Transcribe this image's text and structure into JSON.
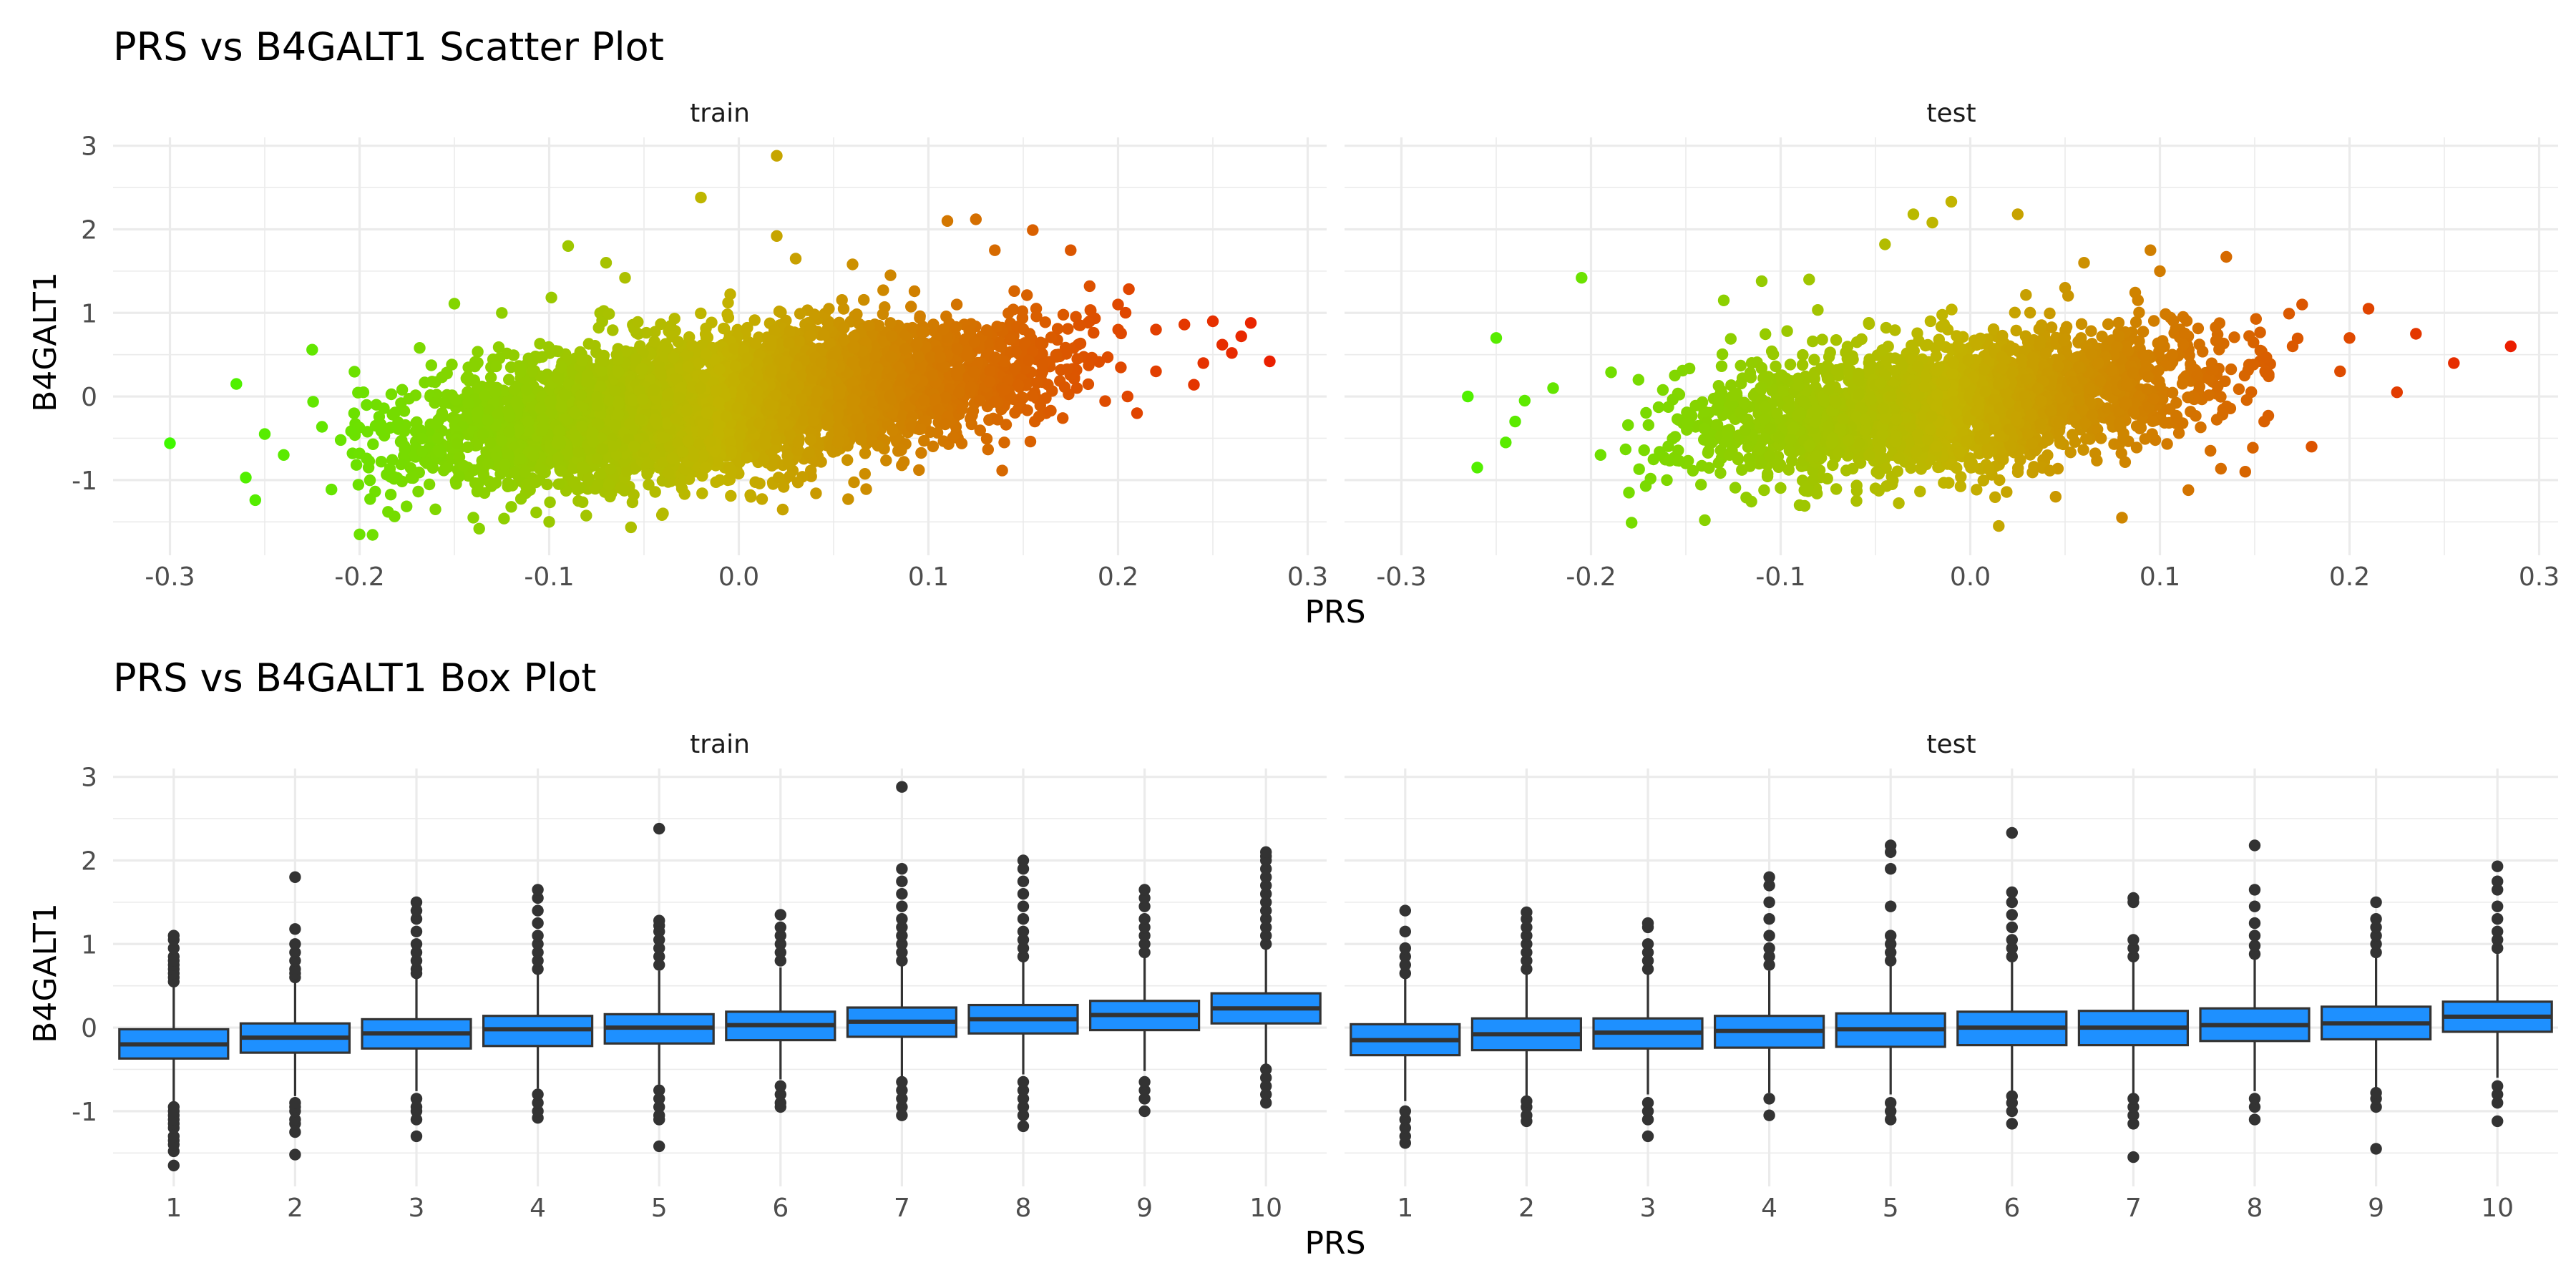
{
  "chart_data": [
    {
      "type": "scatter",
      "title": "PRS vs B4GALT1 Scatter Plot",
      "xlabel": "PRS",
      "ylabel": "B4GALT1",
      "xlim": [
        -0.33,
        0.31
      ],
      "ylim": [
        -1.9,
        3.1
      ],
      "x_ticks": [
        -0.3,
        -0.2,
        -0.1,
        0.0,
        0.1,
        0.2,
        0.3
      ],
      "x_tick_labels": [
        "-0.3",
        "-0.2",
        "-0.1",
        "0.0",
        "0.1",
        "0.2",
        "0.3"
      ],
      "y_ticks": [
        -1,
        0,
        1,
        2,
        3
      ],
      "y_tick_labels": [
        "-1",
        "0",
        "1",
        "2",
        "3"
      ],
      "grid": true,
      "color_scale": {
        "low": "#33ff00",
        "mid": "#c2b400",
        "high": "#ee1100",
        "mapped_to": "PRS"
      },
      "panels": [
        {
          "name": "train",
          "bulk": {
            "x_min": -0.24,
            "x_max": 0.23,
            "slope": 2.7,
            "intercept": -0.04,
            "sd": 0.38,
            "count": 5200
          },
          "points": [
            [
              -0.3,
              -0.56
            ],
            [
              -0.265,
              0.15
            ],
            [
              -0.26,
              -0.97
            ],
            [
              -0.255,
              -1.24
            ],
            [
              -0.25,
              -0.45
            ],
            [
              -0.24,
              -0.7
            ],
            [
              -0.225,
              0.56
            ],
            [
              -0.2,
              -1.65
            ],
            [
              -0.185,
              -1.38
            ],
            [
              -0.15,
              1.11
            ],
            [
              -0.14,
              -1.45
            ],
            [
              -0.125,
              1.0
            ],
            [
              -0.12,
              -1.32
            ],
            [
              -0.1,
              -1.5
            ],
            [
              -0.095,
              -1.05
            ],
            [
              -0.09,
              1.8
            ],
            [
              -0.07,
              1.6
            ],
            [
              -0.06,
              1.42
            ],
            [
              -0.04,
              -1.4
            ],
            [
              -0.02,
              2.38
            ],
            [
              -0.01,
              -1.0
            ],
            [
              0.02,
              1.92
            ],
            [
              0.03,
              1.65
            ],
            [
              0.06,
              1.58
            ],
            [
              0.08,
              1.45
            ],
            [
              0.095,
              -0.88
            ],
            [
              0.11,
              2.1
            ],
            [
              0.125,
              2.12
            ],
            [
              0.135,
              1.75
            ],
            [
              0.155,
              1.99
            ],
            [
              0.175,
              1.75
            ],
            [
              0.185,
              1.32
            ],
            [
              0.2,
              1.1
            ],
            [
              0.22,
              0.8
            ],
            [
              0.235,
              0.86
            ],
            [
              0.245,
              0.4
            ],
            [
              0.25,
              0.9
            ],
            [
              0.255,
              0.62
            ],
            [
              0.26,
              0.52
            ],
            [
              0.265,
              0.72
            ],
            [
              0.27,
              0.88
            ],
            [
              0.28,
              0.42
            ],
            [
              0.24,
              0.14
            ],
            [
              0.22,
              0.3
            ],
            [
              0.21,
              -0.2
            ],
            [
              0.205,
              0.0
            ],
            [
              0.02,
              2.88
            ],
            [
              -0.16,
              -1.35
            ],
            [
              -0.03,
              -1.1
            ],
            [
              0.14,
              -0.55
            ]
          ]
        },
        {
          "name": "test",
          "bulk": {
            "x_min": -0.21,
            "x_max": 0.19,
            "slope": 2.5,
            "intercept": -0.05,
            "sd": 0.38,
            "count": 2600
          },
          "points": [
            [
              -0.265,
              0.0
            ],
            [
              -0.26,
              -0.85
            ],
            [
              -0.25,
              0.7
            ],
            [
              -0.245,
              -0.55
            ],
            [
              -0.24,
              -0.3
            ],
            [
              -0.235,
              -0.05
            ],
            [
              -0.22,
              0.1
            ],
            [
              -0.205,
              1.42
            ],
            [
              -0.18,
              -1.15
            ],
            [
              -0.175,
              0.2
            ],
            [
              -0.16,
              -1.0
            ],
            [
              -0.14,
              -1.48
            ],
            [
              -0.11,
              1.38
            ],
            [
              -0.09,
              -1.3
            ],
            [
              -0.085,
              1.4
            ],
            [
              -0.06,
              -1.25
            ],
            [
              -0.045,
              1.82
            ],
            [
              -0.03,
              2.18
            ],
            [
              -0.02,
              2.08
            ],
            [
              -0.01,
              2.33
            ],
            [
              0.025,
              2.18
            ],
            [
              0.015,
              -1.55
            ],
            [
              0.045,
              -1.2
            ],
            [
              0.06,
              1.6
            ],
            [
              0.08,
              -1.45
            ],
            [
              0.095,
              1.75
            ],
            [
              0.1,
              1.5
            ],
            [
              0.115,
              -1.12
            ],
            [
              0.135,
              1.67
            ],
            [
              0.145,
              -0.9
            ],
            [
              0.17,
              0.6
            ],
            [
              0.18,
              -0.6
            ],
            [
              0.195,
              0.3
            ],
            [
              0.2,
              0.7
            ],
            [
              0.21,
              1.05
            ],
            [
              0.225,
              0.05
            ],
            [
              0.235,
              0.75
            ],
            [
              0.255,
              0.4
            ],
            [
              0.285,
              0.6
            ],
            [
              0.175,
              1.1
            ],
            [
              0.155,
              -0.3
            ],
            [
              -0.195,
              -0.7
            ],
            [
              -0.13,
              1.15
            ],
            [
              0.05,
              1.3
            ],
            [
              -0.05,
              -1.1
            ]
          ]
        }
      ]
    },
    {
      "type": "box",
      "title": "PRS vs B4GALT1 Box Plot",
      "xlabel": "PRS",
      "ylabel": "B4GALT1",
      "ylim": [
        -1.9,
        3.1
      ],
      "y_ticks": [
        -1,
        0,
        1,
        2,
        3
      ],
      "y_tick_labels": [
        "-1",
        "0",
        "1",
        "2",
        "3"
      ],
      "categories": [
        "1",
        "2",
        "3",
        "4",
        "5",
        "6",
        "7",
        "8",
        "9",
        "10"
      ],
      "grid": true,
      "box_color": "#1e90ff",
      "outlier_color": "#333333",
      "panels": [
        {
          "name": "train",
          "boxes": [
            {
              "q1": -0.37,
              "median": -0.2,
              "q3": -0.02,
              "lower": -0.89,
              "upper": 0.5,
              "outliers": [
                -1.65,
                -1.48,
                -1.4,
                -1.35,
                -1.3,
                -1.2,
                -1.15,
                -1.1,
                -1.05,
                -1.0,
                -0.95,
                0.55,
                0.6,
                0.65,
                0.7,
                0.75,
                0.8,
                0.85,
                0.95,
                1.05,
                1.1
              ]
            },
            {
              "q1": -0.3,
              "median": -0.12,
              "q3": 0.05,
              "lower": -0.82,
              "upper": 0.55,
              "outliers": [
                -1.52,
                -1.25,
                -1.15,
                -1.1,
                -1.0,
                -0.95,
                -0.9,
                0.6,
                0.65,
                0.7,
                0.8,
                0.9,
                1.0,
                1.18,
                1.8
              ]
            },
            {
              "q1": -0.25,
              "median": -0.07,
              "q3": 0.1,
              "lower": -0.76,
              "upper": 0.6,
              "outliers": [
                -1.3,
                -1.1,
                -1.0,
                -0.95,
                -0.85,
                0.65,
                0.7,
                0.8,
                0.9,
                1.0,
                1.15,
                1.3,
                1.4,
                1.5
              ]
            },
            {
              "q1": -0.22,
              "median": -0.02,
              "q3": 0.14,
              "lower": -0.73,
              "upper": 0.66,
              "outliers": [
                -1.08,
                -1.0,
                -0.9,
                -0.8,
                0.7,
                0.8,
                0.9,
                1.0,
                1.1,
                1.25,
                1.4,
                1.55,
                1.65
              ]
            },
            {
              "q1": -0.19,
              "median": 0.0,
              "q3": 0.16,
              "lower": -0.68,
              "upper": 0.68,
              "outliers": [
                -1.42,
                -1.1,
                -1.05,
                -0.95,
                -0.85,
                -0.75,
                0.75,
                0.85,
                0.95,
                1.05,
                1.15,
                1.22,
                1.28,
                2.38
              ]
            },
            {
              "q1": -0.15,
              "median": 0.03,
              "q3": 0.19,
              "lower": -0.62,
              "upper": 0.72,
              "outliers": [
                -0.95,
                -0.9,
                -0.8,
                -0.7,
                0.8,
                0.9,
                1.0,
                1.1,
                1.2,
                1.35
              ]
            },
            {
              "q1": -0.11,
              "median": 0.07,
              "q3": 0.24,
              "lower": -0.6,
              "upper": 0.75,
              "outliers": [
                -1.05,
                -0.95,
                -0.85,
                -0.75,
                -0.65,
                0.8,
                0.9,
                1.0,
                1.1,
                1.2,
                1.3,
                1.45,
                1.6,
                1.75,
                1.9,
                2.88
              ]
            },
            {
              "q1": -0.07,
              "median": 0.1,
              "q3": 0.27,
              "lower": -0.56,
              "upper": 0.8,
              "outliers": [
                -1.18,
                -1.05,
                -0.95,
                -0.85,
                -0.75,
                -0.65,
                0.85,
                0.95,
                1.05,
                1.15,
                1.3,
                1.45,
                1.6,
                1.75,
                1.9,
                2.0
              ]
            },
            {
              "q1": -0.03,
              "median": 0.15,
              "q3": 0.32,
              "lower": -0.52,
              "upper": 0.85,
              "outliers": [
                -1.0,
                -0.85,
                -0.75,
                -0.65,
                0.9,
                1.0,
                1.1,
                1.2,
                1.3,
                1.45,
                1.55,
                1.65
              ]
            },
            {
              "q1": 0.05,
              "median": 0.23,
              "q3": 0.41,
              "lower": -0.45,
              "upper": 0.95,
              "outliers": [
                -0.9,
                -0.8,
                -0.7,
                -0.6,
                -0.5,
                1.0,
                1.1,
                1.2,
                1.3,
                1.4,
                1.5,
                1.6,
                1.7,
                1.8,
                1.9,
                2.0,
                2.05,
                2.1
              ]
            }
          ]
        },
        {
          "name": "test",
          "boxes": [
            {
              "q1": -0.33,
              "median": -0.15,
              "q3": 0.04,
              "lower": -0.88,
              "upper": 0.6,
              "outliers": [
                -1.38,
                -1.3,
                -1.2,
                -1.1,
                -1.0,
                0.65,
                0.75,
                0.85,
                0.95,
                1.15,
                1.4
              ]
            },
            {
              "q1": -0.27,
              "median": -0.08,
              "q3": 0.11,
              "lower": -0.83,
              "upper": 0.66,
              "outliers": [
                -1.12,
                -1.05,
                -0.95,
                -0.88,
                0.7,
                0.8,
                0.9,
                1.0,
                1.1,
                1.2,
                1.3,
                1.38
              ]
            },
            {
              "q1": -0.25,
              "median": -0.06,
              "q3": 0.11,
              "lower": -0.8,
              "upper": 0.66,
              "outliers": [
                -1.3,
                -1.1,
                -1.0,
                -0.9,
                0.7,
                0.8,
                0.9,
                1.0,
                1.2,
                1.25
              ]
            },
            {
              "q1": -0.24,
              "median": -0.04,
              "q3": 0.14,
              "lower": -0.78,
              "upper": 0.68,
              "outliers": [
                -1.05,
                -0.85,
                0.75,
                0.85,
                0.95,
                1.1,
                1.3,
                1.5,
                1.7,
                1.8
              ]
            },
            {
              "q1": -0.23,
              "median": -0.02,
              "q3": 0.17,
              "lower": -0.8,
              "upper": 0.75,
              "outliers": [
                -1.1,
                -1.0,
                -0.9,
                0.8,
                0.9,
                1.0,
                1.1,
                1.45,
                1.9,
                2.1,
                2.18
              ]
            },
            {
              "q1": -0.21,
              "median": 0.0,
              "q3": 0.19,
              "lower": -0.78,
              "upper": 0.78,
              "outliers": [
                -1.15,
                -1.0,
                -0.9,
                -0.82,
                0.85,
                0.95,
                1.05,
                1.2,
                1.35,
                1.5,
                1.62,
                2.33
              ]
            },
            {
              "q1": -0.21,
              "median": 0.0,
              "q3": 0.2,
              "lower": -0.8,
              "upper": 0.8,
              "outliers": [
                -1.55,
                -1.15,
                -1.05,
                -0.95,
                -0.85,
                0.85,
                0.95,
                1.05,
                1.5,
                1.55
              ]
            },
            {
              "q1": -0.16,
              "median": 0.03,
              "q3": 0.23,
              "lower": -0.76,
              "upper": 0.82,
              "outliers": [
                -1.1,
                -0.95,
                -0.85,
                0.88,
                0.98,
                1.1,
                1.25,
                1.45,
                1.65,
                2.18
              ]
            },
            {
              "q1": -0.14,
              "median": 0.05,
              "q3": 0.25,
              "lower": -0.72,
              "upper": 0.85,
              "outliers": [
                -1.45,
                -0.95,
                -0.85,
                -0.78,
                0.9,
                1.0,
                1.1,
                1.2,
                1.3,
                1.5
              ]
            },
            {
              "q1": -0.05,
              "median": 0.13,
              "q3": 0.31,
              "lower": -0.6,
              "upper": 0.88,
              "outliers": [
                -1.12,
                -0.9,
                -0.8,
                -0.7,
                0.95,
                1.05,
                1.15,
                1.3,
                1.45,
                1.65,
                1.75,
                1.93
              ]
            }
          ]
        }
      ]
    }
  ]
}
